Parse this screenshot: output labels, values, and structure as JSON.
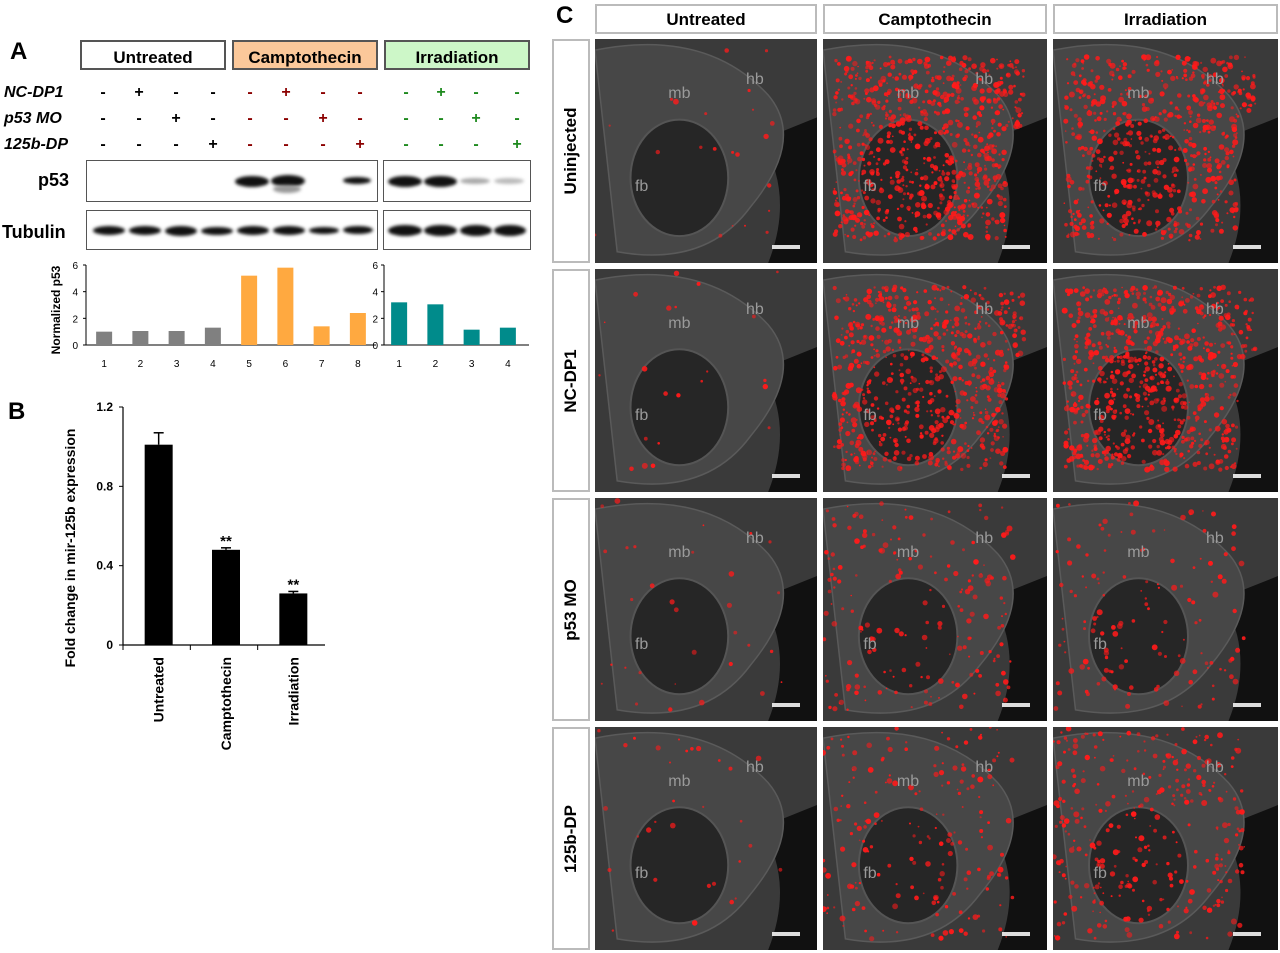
{
  "panel_letters": {
    "a": "A",
    "b": "B",
    "c": "C"
  },
  "panelA": {
    "headers": [
      "Untreated",
      "Camptothecin",
      "Irradiation"
    ],
    "header_colors": [
      "#ffffff",
      "#fbc89a",
      "#cdf7c8"
    ],
    "rows": [
      {
        "label": "NC-DP1",
        "symbols": [
          "-",
          "+",
          "-",
          "-",
          "-",
          "+",
          "-",
          "-",
          "-",
          "+",
          "-",
          "-"
        ]
      },
      {
        "label": "p53 MO",
        "symbols": [
          "-",
          "-",
          "+",
          "-",
          "-",
          "-",
          "+",
          "-",
          "-",
          "-",
          "+",
          "-"
        ]
      },
      {
        "label": "125b-DP",
        "symbols": [
          "-",
          "-",
          "-",
          "+",
          "-",
          "-",
          "-",
          "+",
          "-",
          "-",
          "-",
          "+"
        ]
      }
    ],
    "symbol_colors": {
      "untreated": "#000000",
      "camptothecin": "#8b0000",
      "irradiation": "#1e8a1e"
    },
    "blot_labels": {
      "p53": "p53",
      "tubulin": "Tubulin"
    }
  },
  "chart_data": [
    {
      "type": "bar",
      "categories": [
        "1",
        "2",
        "3",
        "4",
        "5",
        "6",
        "7",
        "8"
      ],
      "values": [
        1.0,
        1.05,
        1.05,
        1.3,
        5.2,
        5.8,
        1.4,
        2.4
      ],
      "colors": [
        "#808080",
        "#808080",
        "#808080",
        "#808080",
        "#ffa940",
        "#ffa940",
        "#ffa940",
        "#ffa940"
      ],
      "ylabel": "Normalized p53",
      "ylim": [
        0,
        6
      ],
      "yticks": [
        0,
        2,
        4,
        6
      ]
    },
    {
      "type": "bar",
      "categories": [
        "1",
        "2",
        "3",
        "4"
      ],
      "values": [
        3.2,
        3.05,
        1.15,
        1.3
      ],
      "colors": [
        "#008b8b",
        "#008b8b",
        "#008b8b",
        "#008b8b"
      ],
      "ylim": [
        0,
        6
      ],
      "yticks": [
        0,
        2,
        4,
        6
      ]
    },
    {
      "type": "bar",
      "categories": [
        "Untreated",
        "Camptothecin",
        "Irradiation"
      ],
      "values": [
        1.01,
        0.48,
        0.26
      ],
      "errors": [
        0.06,
        0.01,
        0.01
      ],
      "annotations": [
        "",
        "**",
        "**"
      ],
      "colors": [
        "#000000",
        "#000000",
        "#000000"
      ],
      "ylabel": "Fold change in mir-125b expression",
      "ylim": [
        0,
        1.2
      ],
      "yticks": [
        0,
        0.4,
        0.8,
        1.2
      ],
      "ytick_labels": [
        "0",
        "0.4",
        "0.8",
        "1.2"
      ]
    }
  ],
  "panelC": {
    "columns": [
      "Untreated",
      "Camptothecin",
      "Irradiation"
    ],
    "rows": [
      "Uninjected",
      "NC-DP1",
      "p53 MO",
      "125b-DP"
    ],
    "region_labels": {
      "mb": "mb",
      "hb": "hb",
      "fb": "fb"
    },
    "red_signal_levels": [
      [
        0.02,
        0.9,
        0.7
      ],
      [
        0.02,
        0.8,
        0.85
      ],
      [
        0.03,
        0.2,
        0.15
      ],
      [
        0.03,
        0.2,
        0.35
      ]
    ]
  }
}
